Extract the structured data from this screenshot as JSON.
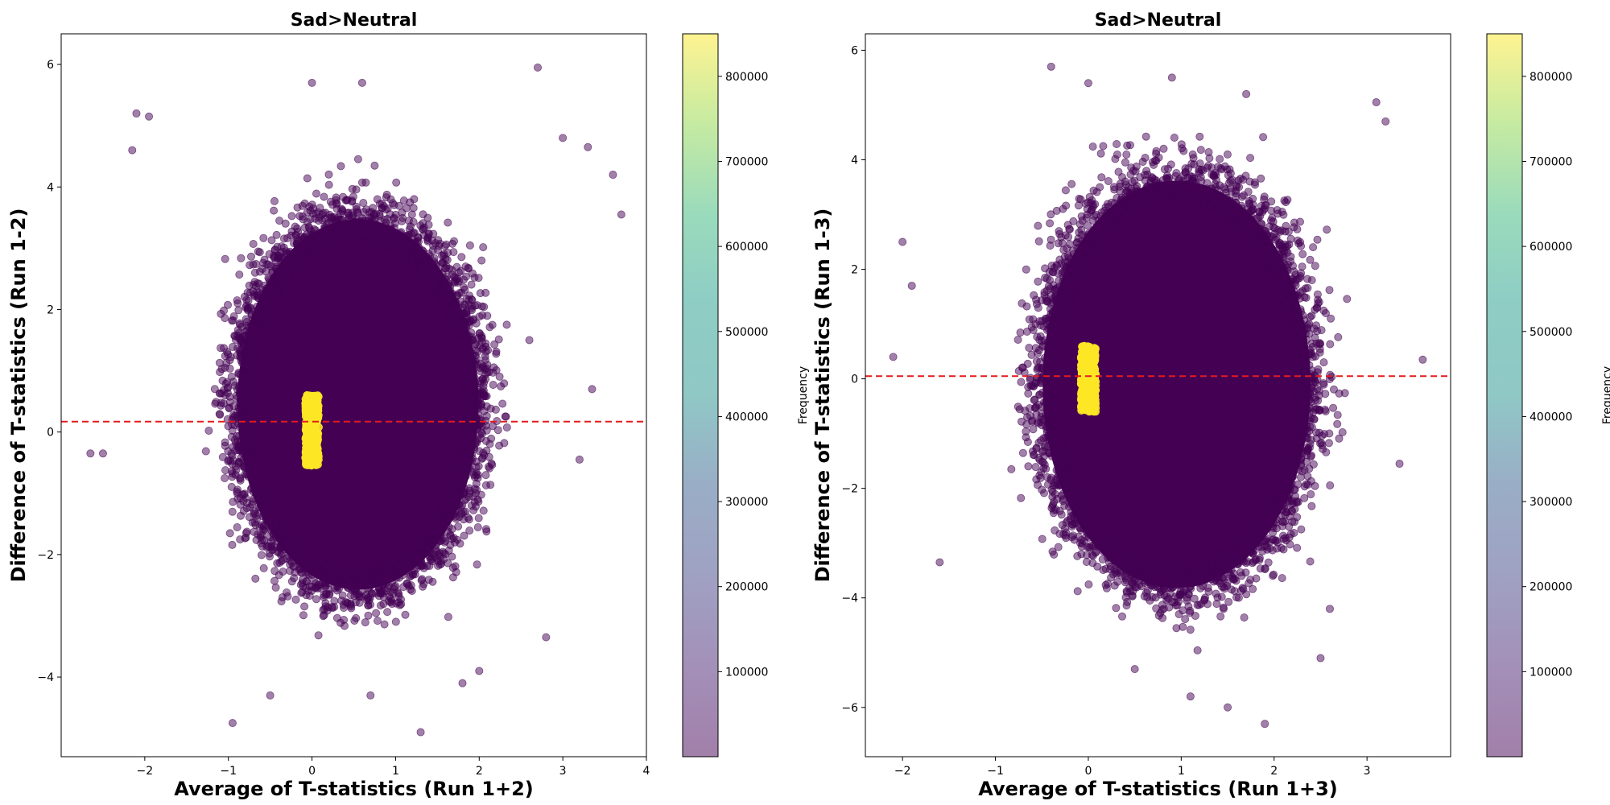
{
  "chart_data": [
    {
      "type": "scatter",
      "title": "Sad>Neutral",
      "xlabel": "Average of T-statistics (Run 1+2)",
      "ylabel": "Difference of T-statistics (Run 1-2)",
      "xlim": [
        -3.0,
        4.0
      ],
      "ylim": [
        -5.3,
        6.5
      ],
      "xticks": [
        -2,
        -1,
        0,
        1,
        2,
        3,
        4
      ],
      "yticks": [
        -4,
        -2,
        0,
        2,
        4,
        6
      ],
      "reference_line": {
        "y": 0.17,
        "style": "dashed",
        "color": "#e41a1c"
      },
      "colorbar": {
        "label": "Frequency",
        "min": 0,
        "max": 850000,
        "ticks": [
          100000,
          200000,
          300000,
          400000,
          500000,
          600000,
          700000,
          800000
        ]
      },
      "cloud": {
        "center": [
          0.55,
          0.45
        ],
        "half_width": 1.55,
        "half_height": 3.25,
        "frequency": 1
      },
      "dense_cluster": {
        "x_range": [
          -0.08,
          0.08
        ],
        "y_range": [
          -0.55,
          0.6
        ],
        "frequency": 850000
      },
      "outliers": [
        [
          -2.1,
          5.2
        ],
        [
          -1.95,
          5.15
        ],
        [
          -2.15,
          4.6
        ],
        [
          0.0,
          5.7
        ],
        [
          0.6,
          5.7
        ],
        [
          2.7,
          5.95
        ],
        [
          3.6,
          4.2
        ],
        [
          3.7,
          3.55
        ],
        [
          3.0,
          4.8
        ],
        [
          3.3,
          4.65
        ],
        [
          -0.95,
          -4.75
        ],
        [
          1.3,
          -4.9
        ],
        [
          0.7,
          -4.3
        ],
        [
          -0.5,
          -4.3
        ],
        [
          -2.5,
          -0.35
        ],
        [
          -2.65,
          -0.35
        ],
        [
          2.8,
          -3.35
        ],
        [
          3.2,
          -0.45
        ],
        [
          3.35,
          0.7
        ],
        [
          2.6,
          1.5
        ],
        [
          1.8,
          -4.1
        ],
        [
          2.0,
          -3.9
        ]
      ]
    },
    {
      "type": "scatter",
      "title": "Sad>Neutral",
      "xlabel": "Average of T-statistics (Run 1+3)",
      "ylabel": "Difference of T-statistics (Run 1-3)",
      "xlim": [
        -2.4,
        3.9
      ],
      "ylim": [
        -6.9,
        6.3
      ],
      "xticks": [
        -2,
        -1,
        0,
        1,
        2,
        3
      ],
      "yticks": [
        -6,
        -4,
        -2,
        0,
        2,
        4,
        6
      ],
      "reference_line": {
        "y": 0.05,
        "style": "dashed",
        "color": "#e41a1c"
      },
      "colorbar": {
        "label": "Frequency",
        "min": 0,
        "max": 850000,
        "ticks": [
          100000,
          200000,
          300000,
          400000,
          500000,
          600000,
          700000,
          800000
        ]
      },
      "cloud": {
        "center": [
          0.95,
          -0.1
        ],
        "half_width": 1.55,
        "half_height": 4.0,
        "frequency": 1
      },
      "dense_cluster": {
        "x_range": [
          -0.08,
          0.08
        ],
        "y_range": [
          -0.6,
          0.6
        ],
        "frequency": 850000
      },
      "outliers": [
        [
          -2.1,
          0.4
        ],
        [
          -2.0,
          2.5
        ],
        [
          -1.9,
          1.7
        ],
        [
          -0.4,
          5.7
        ],
        [
          0.0,
          5.4
        ],
        [
          0.9,
          5.5
        ],
        [
          1.7,
          5.2
        ],
        [
          3.1,
          5.05
        ],
        [
          3.2,
          4.7
        ],
        [
          3.6,
          0.35
        ],
        [
          3.35,
          -1.55
        ],
        [
          1.9,
          -6.3
        ],
        [
          1.5,
          -6.0
        ],
        [
          1.1,
          -5.8
        ],
        [
          0.5,
          -5.3
        ],
        [
          -1.6,
          -3.35
        ],
        [
          2.5,
          -5.1
        ],
        [
          2.6,
          -4.2
        ]
      ]
    }
  ]
}
